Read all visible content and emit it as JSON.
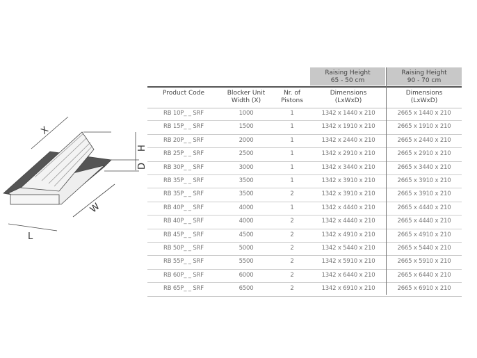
{
  "drawing": {
    "labels": {
      "x": "X",
      "h": "H",
      "d": "D",
      "w": "W",
      "l": "L"
    }
  },
  "table": {
    "groups": [
      {
        "line1": "Raising Height",
        "line2": "65 - 50 cm"
      },
      {
        "line1": "Raising Height",
        "line2": "90 - 70 cm"
      }
    ],
    "headers": [
      {
        "line1": "Product Code",
        "line2": ""
      },
      {
        "line1": "Blocker Unit",
        "line2": "Width (X)"
      },
      {
        "line1": "Nr. of",
        "line2": "Pistons"
      },
      {
        "line1": "Dimensions",
        "line2": "(LxWxD)"
      },
      {
        "line1": "Dimensions",
        "line2": "(LxWxD)"
      }
    ],
    "rows": [
      [
        "RB 10P_ _ SRF",
        "1000",
        "1",
        "1342 x 1440 x 210",
        "2665 x 1440 x 210"
      ],
      [
        "RB 15P_ _ SRF",
        "1500",
        "1",
        "1342 x 1910 x 210",
        "2665 x 1910 x 210"
      ],
      [
        "RB 20P_ _ SRF",
        "2000",
        "1",
        "1342 x 2440 x 210",
        "2665 x 2440 x 210"
      ],
      [
        "RB 25P_ _ SRF",
        "2500",
        "1",
        "1342 x 2910 x 210",
        "2665 x 2910 x 210"
      ],
      [
        "RB 30P_ _ SRF",
        "3000",
        "1",
        "1342 x 3440 x 210",
        "2665 x 3440 x 210"
      ],
      [
        "RB 35P_ _ SRF",
        "3500",
        "1",
        "1342 x 3910 x 210",
        "2665 x 3910 x 210"
      ],
      [
        "RB 35P_ _ SRF",
        "3500",
        "2",
        "1342 x 3910 x 210",
        "2665 x 3910 x 210"
      ],
      [
        "RB 40P_ _ SRF",
        "4000",
        "1",
        "1342 x 4440 x 210",
        "2665 x 4440 x 210"
      ],
      [
        "RB 40P_ _ SRF",
        "4000",
        "2",
        "1342 x 4440 x 210",
        "2665 x 4440 x 210"
      ],
      [
        "RB 45P_ _ SRF",
        "4500",
        "2",
        "1342 x 4910 x 210",
        "2665 x 4910 x 210"
      ],
      [
        "RB 50P_ _ SRF",
        "5000",
        "2",
        "1342 x 5440 x 210",
        "2665 x 5440 x 210"
      ],
      [
        "RB 55P_ _ SRF",
        "5500",
        "2",
        "1342 x 5910 x 210",
        "2665 x 5910 x 210"
      ],
      [
        "RB 60P_ _ SRF",
        "6000",
        "2",
        "1342 x 6440 x 210",
        "2665 x 6440 x 210"
      ],
      [
        "RB 65P_ _ SRF",
        "6500",
        "2",
        "1342 x 6910 x 210",
        "2665 x 6910 x 210"
      ]
    ]
  }
}
